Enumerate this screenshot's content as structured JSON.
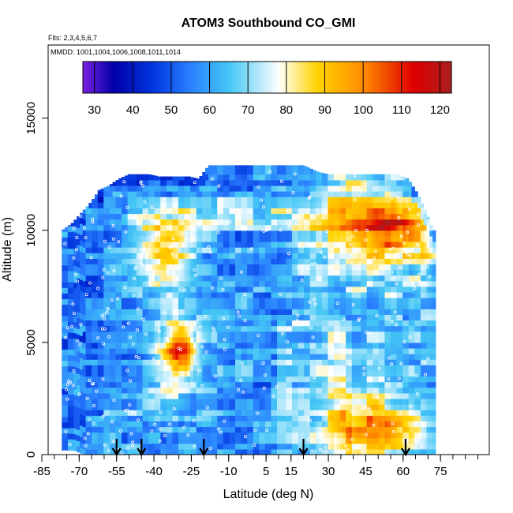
{
  "chart_data": {
    "type": "heatmap",
    "title": "ATOM3 Southbound CO_GMI",
    "flights_label": "Flts: 2,3,4,5,6,7",
    "dates_label": "MMDD: 1001,1004,1006,1008,1011,1014",
    "xlabel": "Latitude (deg N)",
    "ylabel": "Altitude (m)",
    "xlim": [
      -88,
      90
    ],
    "ylim": [
      0,
      18000
    ],
    "x_ticks": [
      -85,
      -70,
      -55,
      -40,
      -25,
      -10,
      5,
      15,
      30,
      45,
      60,
      75
    ],
    "x_tick_labels": [
      "-85",
      "-70",
      "-55",
      "-40",
      "-25",
      "-10",
      "5",
      "15",
      "30",
      "45",
      "60",
      "75"
    ],
    "x_minor_step": 5,
    "y_ticks": [
      0,
      5000,
      10000,
      15000
    ],
    "y_tick_labels": [
      "0",
      "5000",
      "10000",
      "15000"
    ],
    "colorbar": {
      "range": [
        27,
        123
      ],
      "ticks": [
        30,
        40,
        50,
        60,
        70,
        80,
        90,
        100,
        110,
        120
      ],
      "tick_labels": [
        "30",
        "40",
        "50",
        "60",
        "70",
        "80",
        "90",
        "100",
        "110",
        "120"
      ],
      "colors": [
        "#7b20e0",
        "#0000a8",
        "#0033dd",
        "#2a80ff",
        "#43c6f5",
        "#ffffff",
        "#ffd400",
        "#ff8c00",
        "#e00000",
        "#a81e1e"
      ],
      "color_stops": [
        27,
        35,
        45,
        55,
        65,
        78,
        88,
        100,
        113,
        123
      ]
    },
    "ceiling": [
      [
        -77,
        10000
      ],
      [
        -73,
        10300
      ],
      [
        -69,
        10800
      ],
      [
        -65,
        11300
      ],
      [
        -62,
        11800
      ],
      [
        -58,
        12000
      ],
      [
        -54,
        12300
      ],
      [
        -50,
        12500
      ],
      [
        -46,
        12500
      ],
      [
        -42,
        12500
      ],
      [
        -38,
        12400
      ],
      [
        -34,
        12400
      ],
      [
        -30,
        12400
      ],
      [
        -26,
        12400
      ],
      [
        -22,
        12300
      ],
      [
        -18,
        12900
      ],
      [
        -10,
        12900
      ],
      [
        0,
        12900
      ],
      [
        10,
        12900
      ],
      [
        20,
        12900
      ],
      [
        26,
        12600
      ],
      [
        30,
        12500
      ],
      [
        40,
        12500
      ],
      [
        50,
        12500
      ],
      [
        58,
        12500
      ],
      [
        62,
        12300
      ],
      [
        66,
        11600
      ],
      [
        70,
        10600
      ],
      [
        72,
        10000
      ]
    ],
    "floor": [
      [
        -77,
        200
      ],
      [
        -72,
        200
      ],
      [
        -68,
        0
      ],
      [
        -60,
        0
      ],
      [
        0,
        0
      ],
      [
        72,
        0
      ]
    ],
    "blobs": [
      {
        "lat": -36,
        "alt": 8900,
        "slat": 7,
        "salt": 1100,
        "val": 26
      },
      {
        "lat": -29,
        "alt": 4700,
        "slat": 4,
        "salt": 700,
        "val": 38
      },
      {
        "lat": -33,
        "alt": 4200,
        "slat": 6,
        "salt": 1000,
        "val": 16
      },
      {
        "lat": -40,
        "alt": 2300,
        "slat": 14,
        "salt": 900,
        "val": 6
      },
      {
        "lat": 50,
        "alt": 1100,
        "slat": 14,
        "salt": 700,
        "val": 26
      },
      {
        "lat": 44,
        "alt": 1500,
        "slat": 10,
        "salt": 1300,
        "val": 14
      },
      {
        "lat": 46,
        "alt": 9800,
        "slat": 12,
        "salt": 1500,
        "val": 16
      },
      {
        "lat": 56,
        "alt": 9900,
        "slat": 7,
        "salt": 800,
        "val": 30
      },
      {
        "lat": 38,
        "alt": 11000,
        "slat": 10,
        "salt": 1200,
        "val": 10
      },
      {
        "lat": 22,
        "alt": 9000,
        "slat": 7,
        "salt": 1500,
        "val": 10
      },
      {
        "lat": 68,
        "alt": 9000,
        "slat": 3,
        "salt": 1500,
        "val": 14
      },
      {
        "lat": -28,
        "alt": 6500,
        "slat": 12,
        "salt": 2500,
        "val": 8
      }
    ],
    "base_value": 58,
    "arrow_latitudes": [
      -55,
      -45,
      -20,
      20,
      61
    ]
  }
}
